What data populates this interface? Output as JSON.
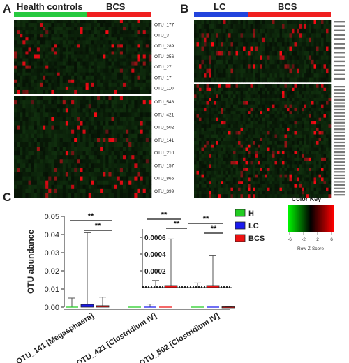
{
  "panels": {
    "A": {
      "letter": "A",
      "group_left": "Health controls",
      "group_right": "BCS",
      "group_left_color": "#27c93f",
      "group_right_color": "#f02020",
      "row_labels_top": [
        "OTU_177",
        "OTU_3",
        "OTU_289",
        "OTU_256",
        "OTU_27",
        "OTU_17",
        "OTU_110"
      ],
      "row_labels_bottom": [
        "OTU_548",
        "OTU_421",
        "OTU_502",
        "OTU_141",
        "OTU_210",
        "OTU_157",
        "OTU_866",
        "OTU_399"
      ]
    },
    "B": {
      "letter": "B",
      "group_left": "LC",
      "group_right": "BCS",
      "group_left_color": "#2244dd",
      "group_right_color": "#f02020"
    },
    "C": {
      "letter": "C"
    }
  },
  "color_key": {
    "title": "Color Key",
    "ticks": [
      "-6",
      "-2",
      "2",
      "6"
    ],
    "xlabel": "Row Z-Score",
    "low_color": "#00ff00",
    "mid_color": "#000000",
    "high_color": "#ff0000"
  },
  "chart_data": [
    {
      "type": "heatmap",
      "panel": "A",
      "column_groups": [
        "Health controls",
        "BCS"
      ],
      "rows_top": [
        "OTU_177",
        "OTU_3",
        "OTU_289",
        "OTU_256",
        "OTU_27",
        "OTU_17",
        "OTU_110"
      ],
      "rows_bottom": [
        "OTU_548",
        "OTU_421",
        "OTU_502",
        "OTU_141",
        "OTU_210",
        "OTU_157",
        "OTU_866",
        "OTU_399"
      ],
      "value_label": "Row Z-Score"
    },
    {
      "type": "heatmap",
      "panel": "B",
      "column_groups": [
        "LC",
        "BCS"
      ],
      "value_label": "Row Z-Score"
    },
    {
      "type": "box",
      "panel": "C",
      "categories": [
        "OTU_141 [Megasphaera]",
        "OTU_421 [Clostridium IV]",
        "OTU_502 [Clostridium IV]"
      ],
      "ylabel": "OTU abundance",
      "ylim": [
        0,
        0.05
      ],
      "yticks": [
        "0.00",
        "0.01",
        "0.02",
        "0.03",
        "0.04",
        "0.05"
      ],
      "series": [
        {
          "name": "H",
          "color": "#22cc22",
          "whisker_max": [
            0.005,
            0.0,
            0.0
          ],
          "q3": [
            0.0,
            0.0,
            0.0
          ],
          "median": [
            0.0,
            0.0,
            0.0
          ]
        },
        {
          "name": "LC",
          "color": "#1a1aee",
          "whisker_max": [
            0.041,
            0.0017,
            0.0
          ],
          "q3": [
            0.0015,
            0.0,
            0.0
          ],
          "median": [
            0.0002,
            0.0,
            0.0
          ]
        },
        {
          "name": "BCS",
          "color": "#ee1111",
          "whisker_max": [
            0.0055,
            0.0,
            0.0004
          ],
          "q3": [
            0.0008,
            0.0,
            0.0002
          ],
          "median": [
            0.0,
            0.0,
            0.0
          ]
        }
      ],
      "significance": [
        "**",
        "**",
        "**",
        "**",
        "**",
        "**"
      ],
      "inset": {
        "ylim": [
          0,
          0.0007
        ],
        "yticks": [
          "0.0006",
          "0.0004",
          "0.0002"
        ],
        "reference_line": 1e-05,
        "series": [
          {
            "name": "H",
            "whisker_max": [
              8.5e-05,
              5.5e-05
            ]
          },
          {
            "name": "LC",
            "whisker_max": [
              0.0,
              0.0
            ]
          },
          {
            "name": "BCS",
            "whisker_max": [
              0.00058,
              0.00038
            ],
            "q3": [
              2.5e-05,
              2.5e-05
            ]
          }
        ]
      }
    }
  ]
}
